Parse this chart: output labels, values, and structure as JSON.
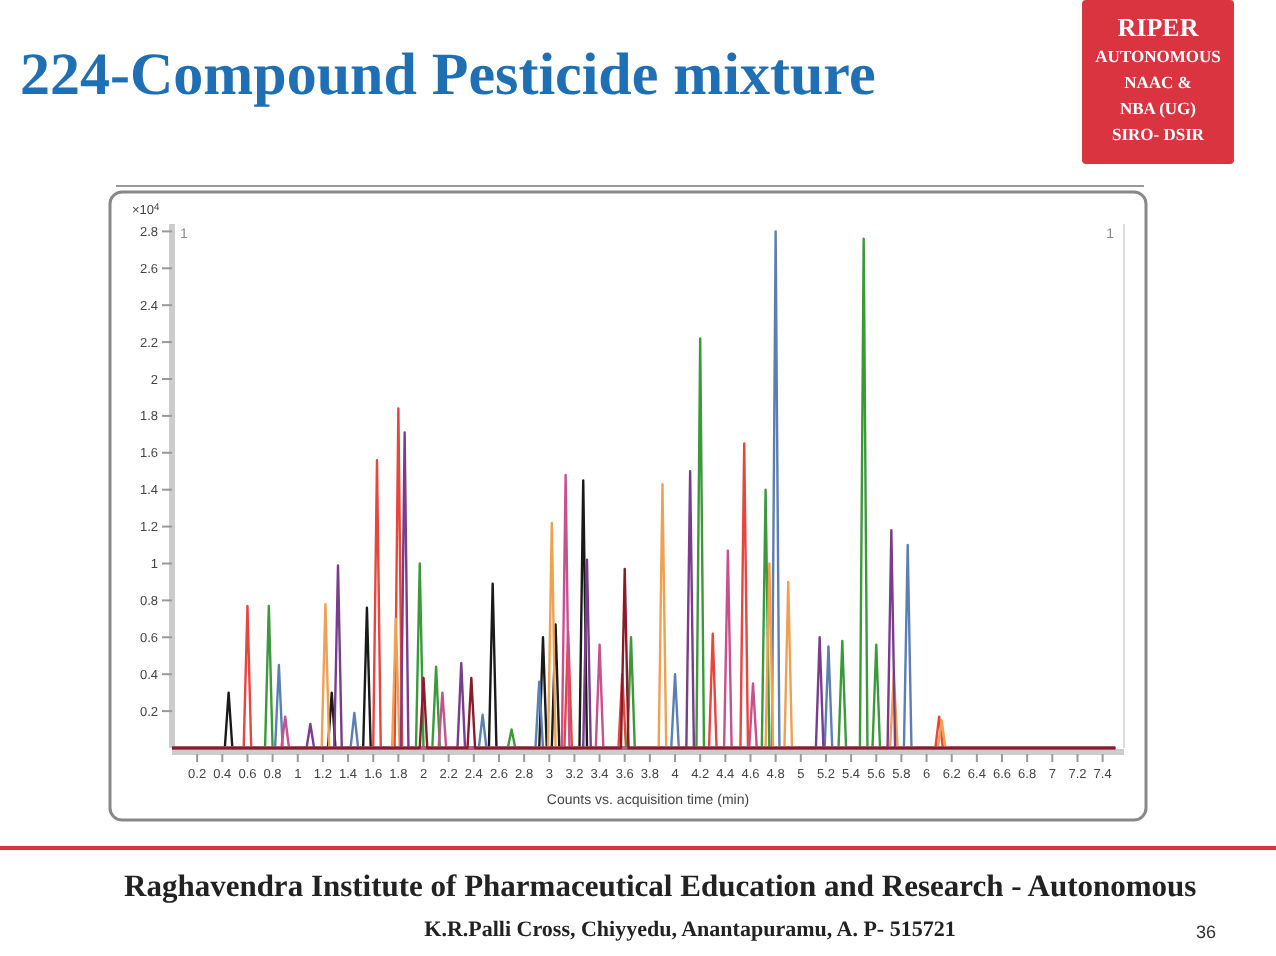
{
  "chart_data": {
    "type": "line",
    "title": "224-Compound Pesticide mixture",
    "xlabel": "Counts vs. acquisition time (min)",
    "ylabel": "×10$^{4}$",
    "xlim": [
      0,
      7.57
    ],
    "ylim": [
      0,
      2.84
    ],
    "xticks": [
      0.2,
      0.4,
      0.6,
      0.8,
      1,
      1.2,
      1.4,
      1.6,
      1.8,
      2,
      2.2,
      2.4,
      2.6,
      2.8,
      3,
      3.2,
      3.4,
      3.6,
      3.8,
      4,
      4.2,
      4.4,
      4.6,
      4.8,
      5,
      5.2,
      5.4,
      5.6,
      5.8,
      6,
      6.2,
      6.4,
      6.6,
      6.8,
      7,
      7.2,
      7.4
    ],
    "yticks": [
      0.2,
      0.4,
      0.6,
      0.8,
      1,
      1.2,
      1.4,
      1.6,
      1.8,
      2,
      2.2,
      2.4,
      2.6,
      2.8
    ],
    "marker": "none",
    "line_style": "solid",
    "series": [
      {
        "color": "#1a1a1a",
        "x": [
          0,
          0.42,
          0.45,
          0.48,
          1.24,
          1.27,
          1.3,
          1.52,
          1.55,
          1.58,
          2.52,
          2.55,
          2.58,
          2.92,
          2.95,
          2.98,
          3.02,
          3.05,
          3.08,
          3.24,
          3.27,
          3.3,
          7.5
        ],
        "values": [
          0,
          0,
          0.3,
          0,
          0,
          0.3,
          0,
          0,
          0.76,
          0,
          0,
          0.89,
          0,
          0,
          0.6,
          0,
          0,
          0.67,
          0,
          0,
          1.45,
          0,
          0
        ]
      },
      {
        "color": "#e8453c",
        "x": [
          0,
          0.57,
          0.6,
          0.63,
          1.6,
          1.63,
          1.66,
          1.77,
          1.8,
          1.83,
          3.12,
          3.15,
          3.18,
          3.55,
          3.58,
          3.61,
          4.27,
          4.3,
          4.33,
          4.52,
          4.55,
          4.58,
          6.07,
          6.1,
          6.13,
          7.5
        ],
        "values": [
          0,
          0,
          0.77,
          0,
          0,
          1.56,
          0,
          0,
          1.84,
          0,
          0,
          0.63,
          0,
          0,
          0.4,
          0,
          0,
          0.62,
          0,
          0,
          1.65,
          0,
          0,
          0.17,
          0,
          0
        ]
      },
      {
        "color": "#3a9a3a",
        "x": [
          0,
          0.74,
          0.77,
          0.8,
          1.94,
          1.97,
          2.0,
          2.07,
          2.1,
          2.13,
          2.67,
          2.7,
          2.73,
          3.62,
          3.65,
          3.68,
          4.17,
          4.2,
          4.23,
          4.69,
          4.72,
          4.75,
          5.3,
          5.33,
          5.36,
          5.47,
          5.5,
          5.53,
          5.57,
          5.6,
          5.63,
          7.5
        ],
        "values": [
          0,
          0,
          0.77,
          0,
          0,
          1.0,
          0,
          0,
          0.44,
          0,
          0,
          0.1,
          0,
          0,
          0.6,
          0,
          0,
          2.22,
          0,
          0,
          1.4,
          0,
          0,
          0.58,
          0,
          0,
          2.76,
          0,
          0,
          0.56,
          0,
          0
        ]
      },
      {
        "color": "#5b7fb5",
        "x": [
          0,
          0.82,
          0.85,
          0.88,
          1.42,
          1.45,
          1.48,
          2.44,
          2.47,
          2.5,
          2.89,
          2.92,
          2.95,
          3.97,
          4.0,
          4.03,
          4.77,
          4.8,
          4.83,
          5.19,
          5.22,
          5.25,
          5.82,
          5.85,
          5.88,
          7.5
        ],
        "values": [
          0,
          0,
          0.45,
          0,
          0,
          0.19,
          0,
          0,
          0.18,
          0,
          0,
          0.36,
          0,
          0,
          0.4,
          0,
          0,
          2.8,
          0,
          0,
          0.55,
          0,
          0,
          1.1,
          0,
          0
        ]
      },
      {
        "color": "#f0a050",
        "x": [
          0,
          1.19,
          1.22,
          1.25,
          1.75,
          1.78,
          1.81,
          2.99,
          3.02,
          3.05,
          3.87,
          3.9,
          3.93,
          4.72,
          4.75,
          4.78,
          4.87,
          4.9,
          4.93,
          5.71,
          5.74,
          5.77,
          6.09,
          6.12,
          6.15,
          7.5
        ],
        "values": [
          0,
          0,
          0.78,
          0,
          0,
          0.7,
          0,
          0,
          1.22,
          0,
          0,
          1.43,
          0,
          0,
          1.0,
          0,
          0,
          0.9,
          0,
          0,
          0.4,
          0,
          0,
          0.15,
          0,
          0
        ]
      },
      {
        "color": "#7a3c8c",
        "x": [
          0,
          1.07,
          1.1,
          1.13,
          1.29,
          1.32,
          1.35,
          1.82,
          1.85,
          1.88,
          2.27,
          2.3,
          2.33,
          3.27,
          3.3,
          3.33,
          4.09,
          4.12,
          4.15,
          5.12,
          5.15,
          5.18,
          5.69,
          5.72,
          5.75,
          7.5
        ],
        "values": [
          0,
          0,
          0.13,
          0,
          0,
          0.99,
          0,
          0,
          1.71,
          0,
          0,
          0.46,
          0,
          0,
          1.02,
          0,
          0,
          1.5,
          0,
          0,
          0.6,
          0,
          0,
          1.18,
          0,
          0
        ]
      },
      {
        "color": "#c8508c",
        "x": [
          0,
          0.87,
          0.9,
          0.93,
          2.12,
          2.15,
          2.18,
          3.1,
          3.13,
          3.16,
          3.37,
          3.4,
          3.43,
          4.39,
          4.42,
          4.45,
          4.59,
          4.62,
          4.65,
          7.5
        ],
        "values": [
          0,
          0,
          0.17,
          0,
          0,
          0.3,
          0,
          0,
          1.48,
          0,
          0,
          0.56,
          0,
          0,
          1.07,
          0,
          0,
          0.35,
          0,
          0
        ]
      },
      {
        "color": "#8b1a2a",
        "x": [
          0,
          1.97,
          2.0,
          2.03,
          2.35,
          2.38,
          2.41,
          3.57,
          3.6,
          3.63,
          7.5
        ],
        "values": [
          0,
          0,
          0.38,
          0,
          0,
          0.38,
          0,
          0,
          0.97,
          0,
          0
        ]
      }
    ],
    "annotations": [
      "RIPER",
      "AUTONOMOUS",
      "NAAC &",
      "NBA (UG)",
      "SIRO- DSIR",
      "Raghavendra Institute of Pharmaceutical Education and Research - Autonomous",
      "K.R.Palli Cross, Chiyyedu, Anantapuramu, A. P- 515721",
      "36",
      "1",
      "1"
    ]
  }
}
